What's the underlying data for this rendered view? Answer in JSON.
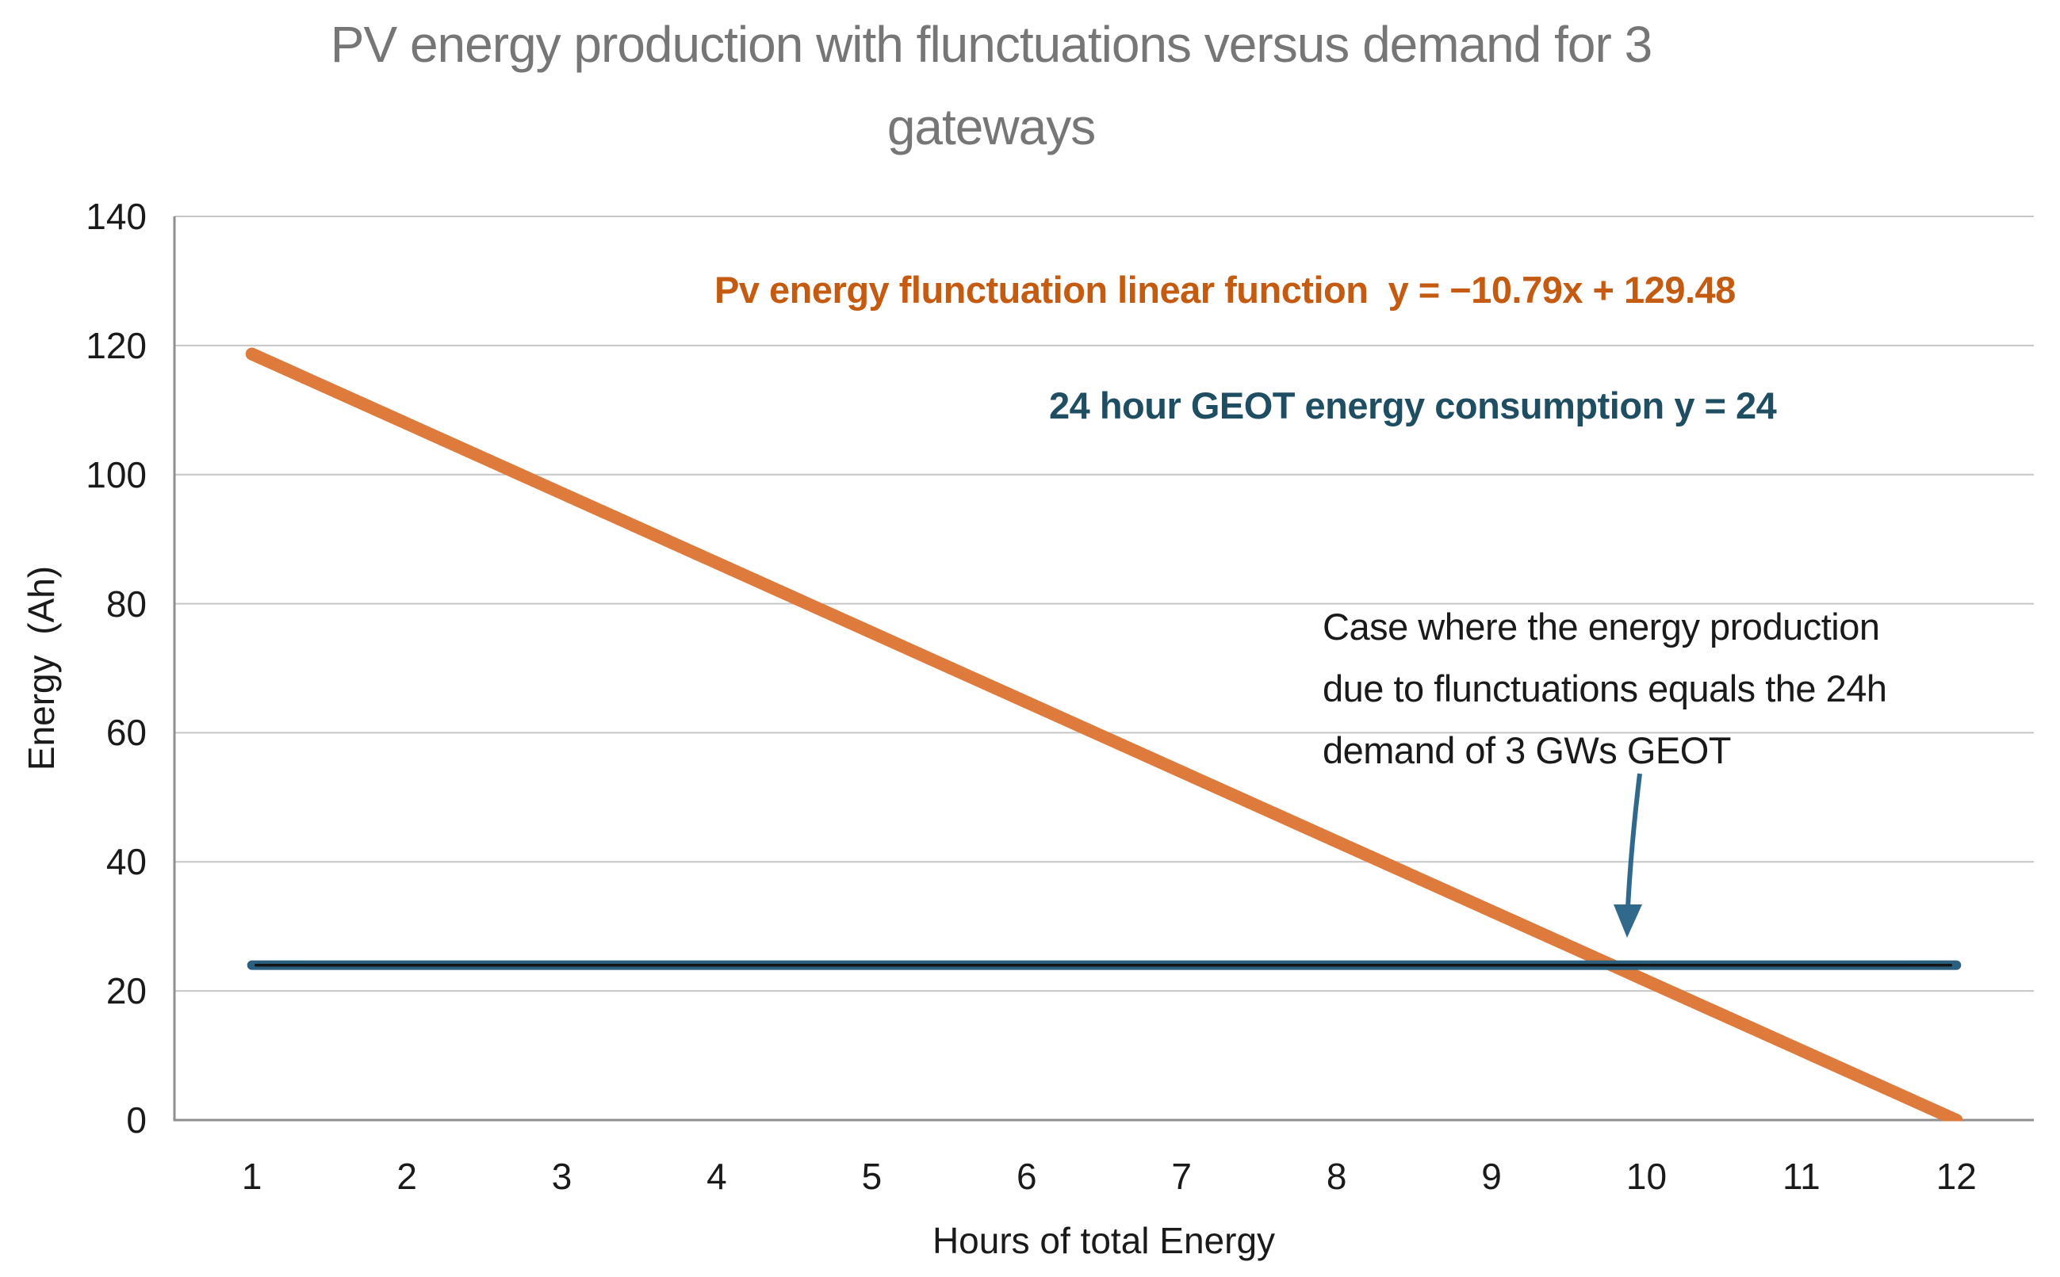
{
  "title": {
    "lines": [
      "PV energy production with flunctuations versus demand for 3",
      "gateways"
    ],
    "full": "PV energy production with flunctuations versus demand for 3 gateways"
  },
  "series_labels": {
    "pv": "Pv energy flunctuation linear function  y = −10.79x + 129.48",
    "geot": "24 hour GEOT energy consumption y = 24"
  },
  "annotation": {
    "lines": [
      "Case where the energy production",
      "due to flunctuations equals the 24h",
      "demand of 3 GWs GEOT"
    ],
    "arrow_points_to": {
      "x": 9.78,
      "y": 24
    }
  },
  "chart_data": {
    "type": "line",
    "title": "PV energy production with flunctuations versus demand for 3 gateways",
    "xlabel": "Hours of total Energy",
    "ylabel": "Energy  (Ah)",
    "x": [
      1,
      2,
      3,
      4,
      5,
      6,
      7,
      8,
      9,
      10,
      11,
      12
    ],
    "ylim": [
      0,
      140
    ],
    "yticks": [
      0,
      20,
      40,
      60,
      80,
      100,
      120,
      140
    ],
    "grid": "horizontal-only",
    "legend_position": "none",
    "series": [
      {
        "name": "Pv energy flunctuation linear function",
        "equation": "y = −10.79x + 129.48",
        "color": "#DE7B3C",
        "values": [
          118.69,
          107.9,
          97.11,
          86.32,
          75.53,
          64.74,
          53.95,
          43.16,
          32.37,
          21.58,
          10.79,
          0.0
        ]
      },
      {
        "name": "24 hour GEOT energy consumption",
        "equation": "y = 24",
        "color": "#2B5F7E",
        "core_color": "#141414",
        "values": [
          24,
          24,
          24,
          24,
          24,
          24,
          24,
          24,
          24,
          24,
          24,
          24
        ]
      }
    ],
    "intersection": {
      "x": 9.78,
      "y": 24
    }
  },
  "colors": {
    "orange_line": "#DE7B3C",
    "orange_text": "#C55A11",
    "blue_line": "#2B5F7E",
    "blue_line_core": "#141414",
    "blue_text": "#1F4E63",
    "arrow": "#31698C",
    "gridline": "#C6C6C6",
    "axis": "#8F8F8F",
    "title_text": "#767676",
    "body_text": "#1A1A1A"
  }
}
